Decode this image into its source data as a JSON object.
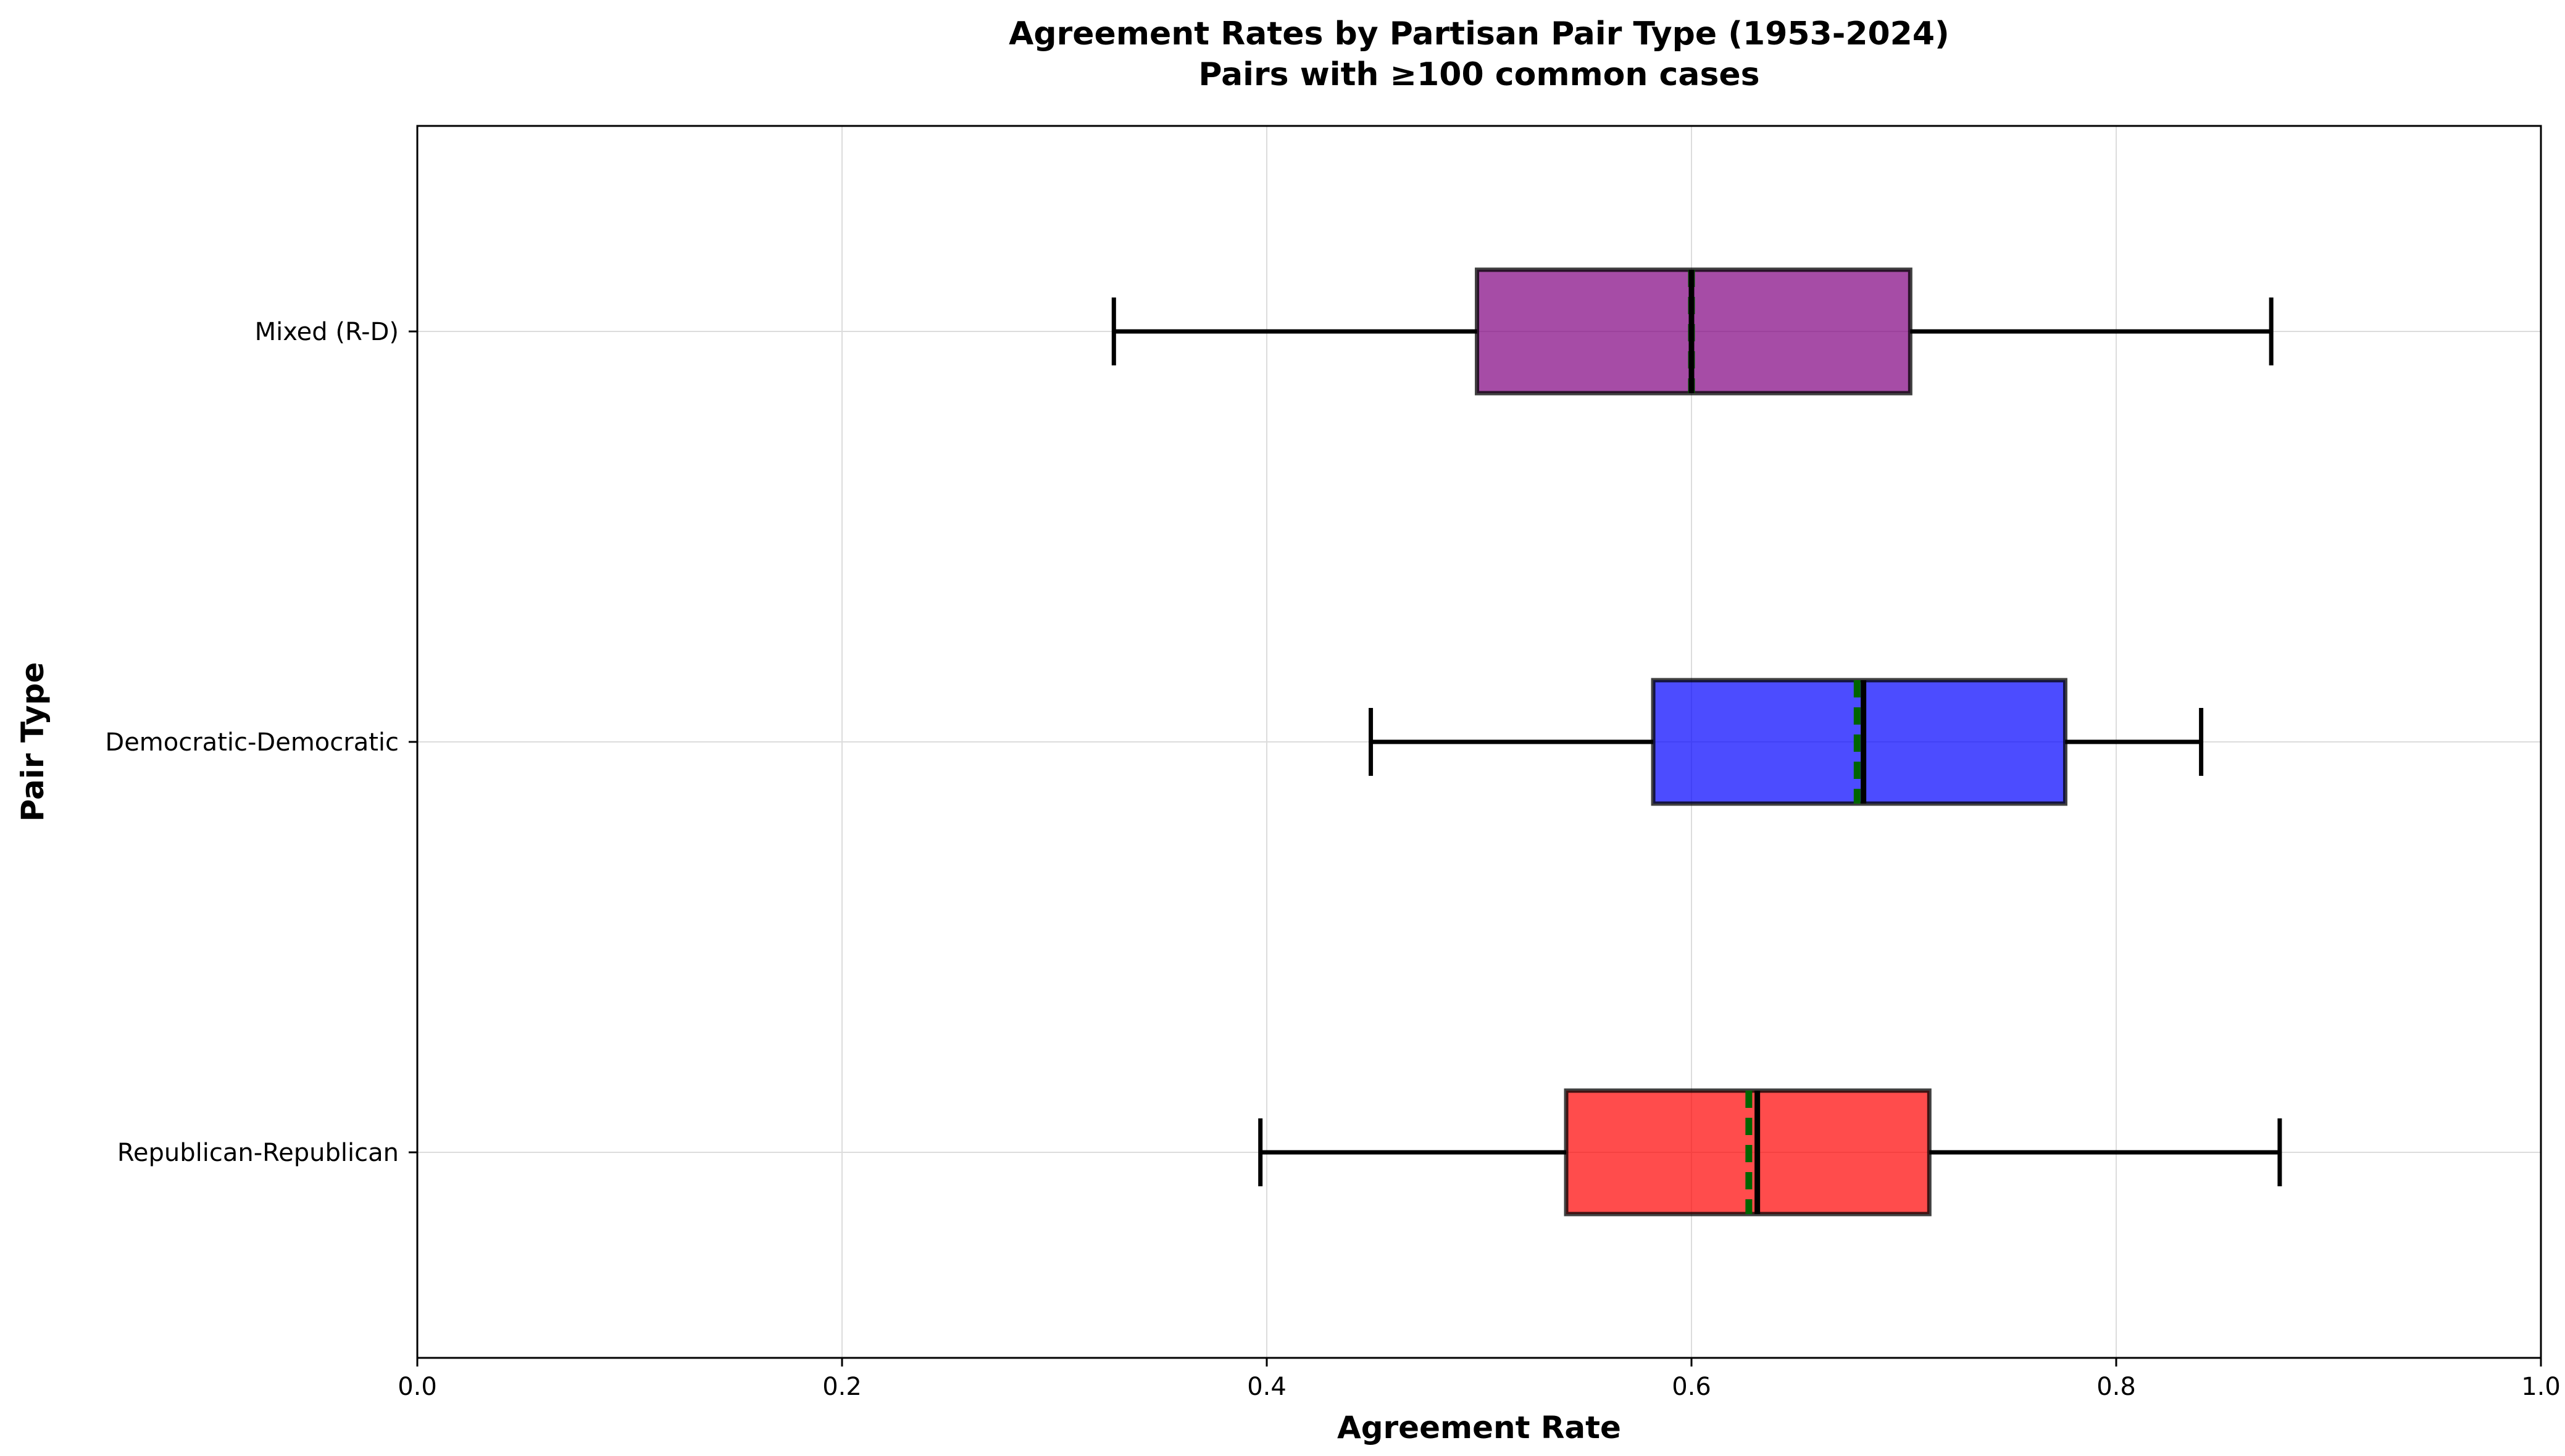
{
  "chart_data": {
    "type": "boxplot",
    "orientation": "horizontal",
    "title": "Agreement Rates by Partisan Pair Type (1953-2024)",
    "subtitle": "Pairs with ≥100 common cases",
    "xlabel": "Agreement Rate",
    "ylabel": "Pair Type",
    "xlim": [
      0.0,
      1.0
    ],
    "xticks": [
      0.0,
      0.2,
      0.4,
      0.6,
      0.8,
      1.0
    ],
    "xtick_labels": [
      "0.0",
      "0.2",
      "0.4",
      "0.6",
      "0.8",
      "1.0"
    ],
    "grid": true,
    "series": [
      {
        "category": "Mixed (R-D)",
        "color": "#800080",
        "whisker_low": 0.328,
        "q1": 0.499,
        "median": 0.6,
        "mean": 0.6,
        "q3": 0.703,
        "whisker_high": 0.873
      },
      {
        "category": "Democratic-Democratic",
        "color": "#0000ff",
        "whisker_low": 0.449,
        "q1": 0.582,
        "median": 0.681,
        "mean": 0.678,
        "q3": 0.776,
        "whisker_high": 0.84
      },
      {
        "category": "Republican-Republican",
        "color": "#ff0000",
        "whisker_low": 0.397,
        "q1": 0.541,
        "median": 0.631,
        "mean": 0.627,
        "q3": 0.712,
        "whisker_high": 0.877
      }
    ]
  }
}
